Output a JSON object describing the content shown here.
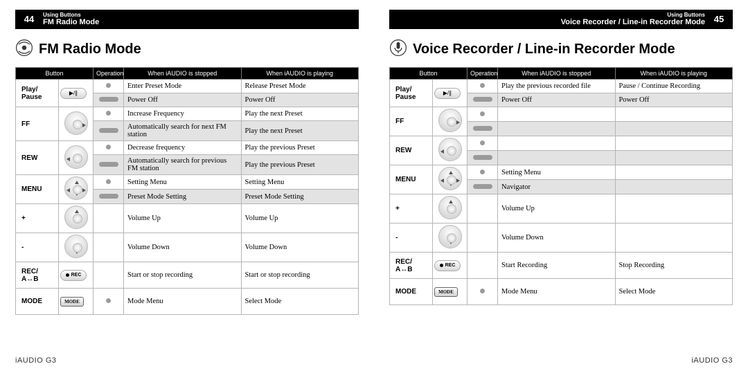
{
  "colors": {
    "header_bg": "#000000",
    "header_fg": "#ffffff",
    "row_alt": "#e3e3e3",
    "border": "#b5b5b5",
    "op_dot": "#9a9a9a"
  },
  "footer_label": "iAUDIO G3",
  "columns": [
    "Button",
    "",
    "Operation",
    "When iAUDIO is stopped",
    "When iAUDIO is playing"
  ],
  "left": {
    "page_num": "44",
    "breadcrumb_small": "Using Buttons",
    "breadcrumb_big": "FM Radio Mode",
    "title": "FM Radio Mode",
    "rows": [
      {
        "label": "Play/ Pause",
        "btn": "playpause",
        "sub": [
          {
            "op": "dot",
            "stopped": "Enter Preset Mode",
            "playing": "Release Preset Mode"
          },
          {
            "op": "pill",
            "stopped": "Power Off",
            "playing": "Power Off",
            "alt": true
          }
        ]
      },
      {
        "label": "FF",
        "btn": "round-r",
        "sub": [
          {
            "op": "dot",
            "stopped": "Increase Frequency",
            "playing": "Play the next Preset"
          },
          {
            "op": "pill",
            "stopped": "Automatically search for next FM station",
            "playing": "Play the next Preset",
            "alt": true
          }
        ]
      },
      {
        "label": "REW",
        "btn": "round-l",
        "sub": [
          {
            "op": "dot",
            "stopped": "Decrease frequency",
            "playing": "Play the previous Preset"
          },
          {
            "op": "pill",
            "stopped": "Automatically search for previous FM station",
            "playing": "Play the previous Preset",
            "alt": true
          }
        ]
      },
      {
        "label": "MENU",
        "btn": "round-c",
        "sub": [
          {
            "op": "dot",
            "stopped": "Setting Menu",
            "playing": "Setting Menu"
          },
          {
            "op": "pill",
            "stopped": "Preset Mode Setting",
            "playing": "Preset Mode Setting",
            "alt": true
          }
        ]
      },
      {
        "label": "+",
        "btn": "round-u",
        "sub": [
          {
            "op": "",
            "stopped": "Volume Up",
            "playing": "Volume Up",
            "tall": true
          }
        ]
      },
      {
        "label": "-",
        "btn": "round-d",
        "sub": [
          {
            "op": "",
            "stopped": "Volume Down",
            "playing": "Volume Down",
            "tall": true
          }
        ]
      },
      {
        "label": "REC/A↔B",
        "btn": "rec",
        "sub": [
          {
            "op": "",
            "stopped": "Start or stop recording",
            "playing": "Start or stop recording",
            "tall": true
          }
        ]
      },
      {
        "label": "MODE",
        "btn": "mode",
        "sub": [
          {
            "op": "dot",
            "stopped": "Mode Menu",
            "playing": "Select Mode",
            "tall": true
          }
        ]
      }
    ]
  },
  "right": {
    "page_num": "45",
    "breadcrumb_small": "Using Buttons",
    "breadcrumb_big": "Voice Recorder / Line-in Recorder Mode",
    "title": "Voice Recorder / Line-in Recorder Mode",
    "rows": [
      {
        "label": "Play/ Pause",
        "btn": "playpause",
        "sub": [
          {
            "op": "dot",
            "stopped": "Play the previous recorded file",
            "playing": "Pause / Continue Recording"
          },
          {
            "op": "pill",
            "stopped": "Power Off",
            "playing": "Power Off",
            "alt": true
          }
        ]
      },
      {
        "label": "FF",
        "btn": "round-r",
        "sub": [
          {
            "op": "dot",
            "stopped": "",
            "playing": ""
          },
          {
            "op": "pill",
            "stopped": "",
            "playing": "",
            "alt": true
          }
        ]
      },
      {
        "label": "REW",
        "btn": "round-l",
        "sub": [
          {
            "op": "dot",
            "stopped": "",
            "playing": ""
          },
          {
            "op": "pill",
            "stopped": "",
            "playing": "",
            "alt": true
          }
        ]
      },
      {
        "label": "MENU",
        "btn": "round-c",
        "sub": [
          {
            "op": "dot",
            "stopped": "Setting Menu",
            "playing": ""
          },
          {
            "op": "pill",
            "stopped": "Navigator",
            "playing": "",
            "alt": true
          }
        ]
      },
      {
        "label": "+",
        "btn": "round-u",
        "sub": [
          {
            "op": "",
            "stopped": "Volume Up",
            "playing": "",
            "tall": true
          }
        ]
      },
      {
        "label": "-",
        "btn": "round-d",
        "sub": [
          {
            "op": "",
            "stopped": "Volume Down",
            "playing": "",
            "tall": true
          }
        ]
      },
      {
        "label": "REC/A↔B",
        "btn": "rec",
        "sub": [
          {
            "op": "",
            "stopped": "Start Recording",
            "playing": "Stop Recording",
            "tall": true
          }
        ]
      },
      {
        "label": "MODE",
        "btn": "mode",
        "sub": [
          {
            "op": "dot",
            "stopped": "Mode Menu",
            "playing": "Select Mode",
            "tall": true
          }
        ]
      }
    ]
  }
}
